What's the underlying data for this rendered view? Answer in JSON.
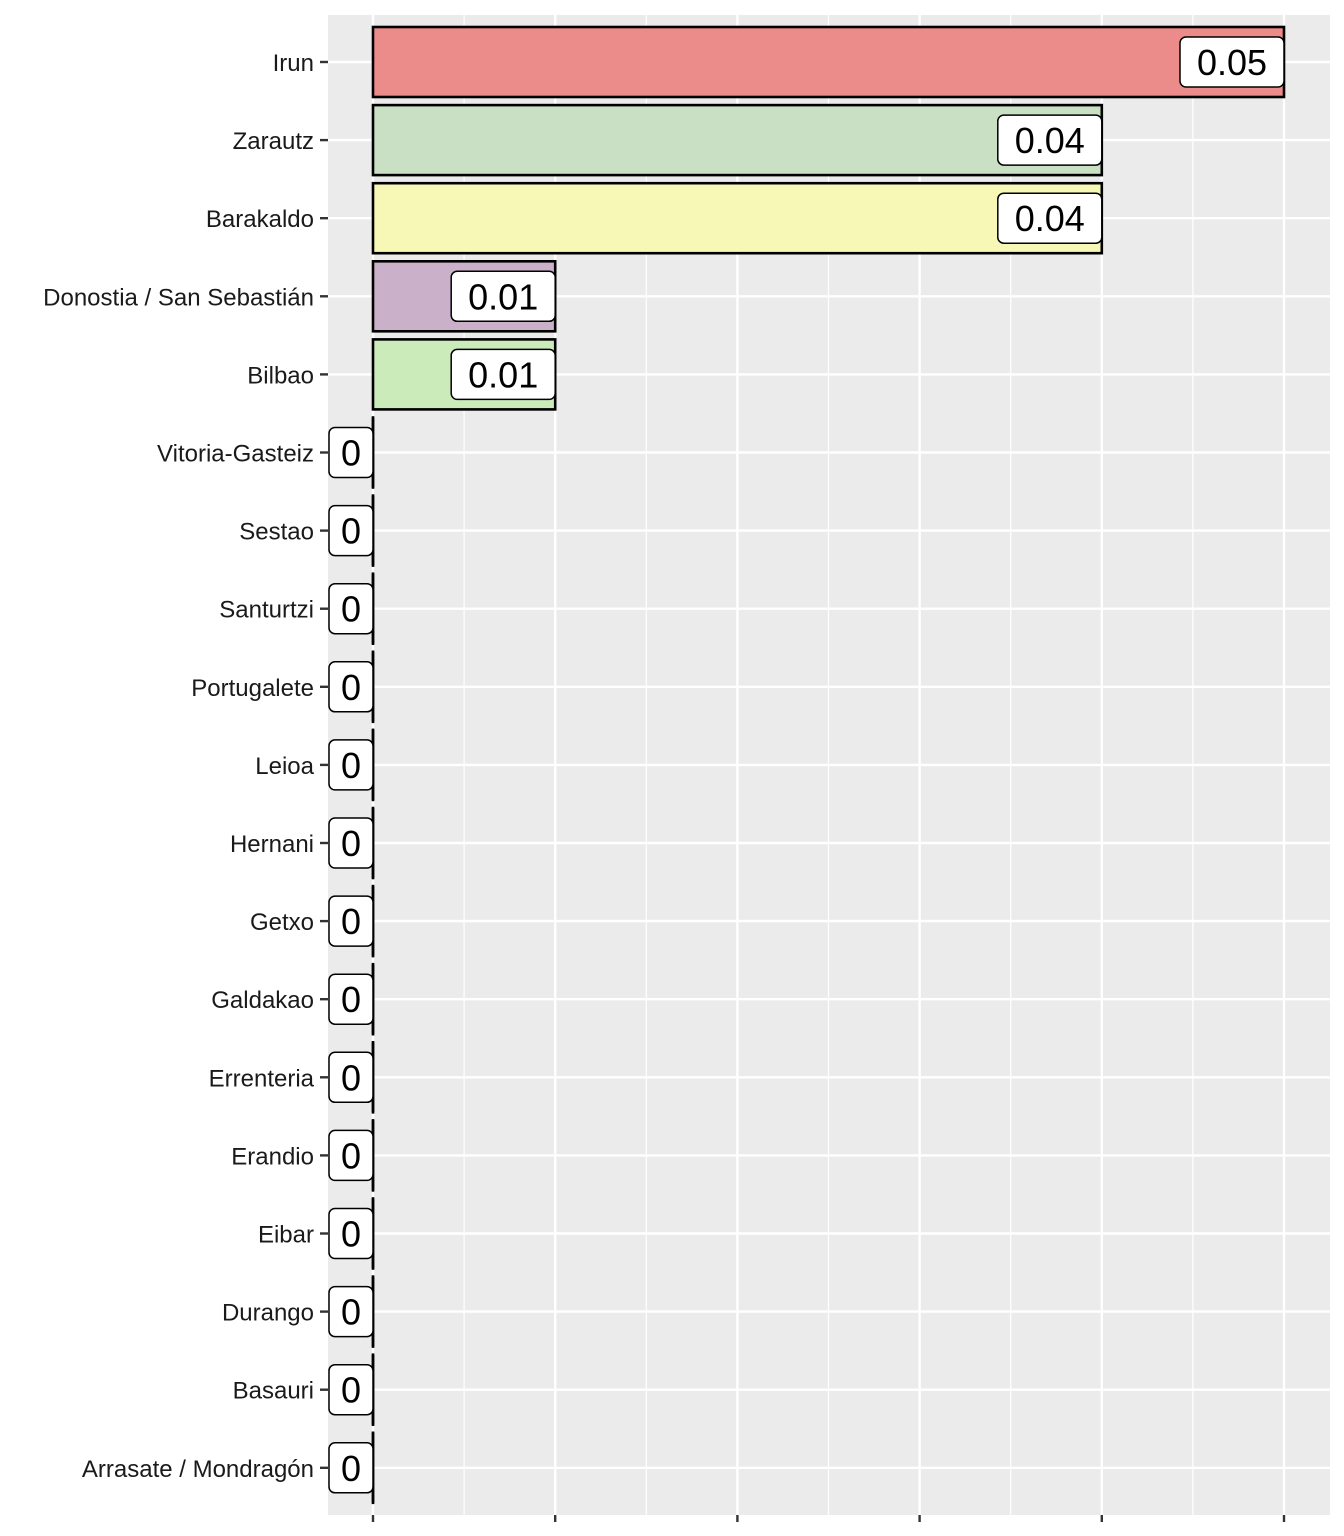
{
  "chart_data": {
    "type": "bar",
    "orientation": "horizontal",
    "title": "",
    "xlabel": "",
    "ylabel": "",
    "xlim": [
      0,
      0.05
    ],
    "x_ticks": [
      0,
      0.01,
      0.02,
      0.03,
      0.04,
      0.05
    ],
    "x_tick_labels_visible": false,
    "grid": true,
    "categories": [
      "Irun",
      "Zarautz",
      "Barakaldo",
      "Donostia / San Sebastián",
      "Bilbao",
      "Vitoria-Gasteiz",
      "Sestao",
      "Santurtzi",
      "Portugalete",
      "Leioa",
      "Hernani",
      "Getxo",
      "Galdakao",
      "Errenteria",
      "Erandio",
      "Eibar",
      "Durango",
      "Basauri",
      "Arrasate / Mondragón"
    ],
    "values": [
      0.05,
      0.04,
      0.04,
      0.01,
      0.01,
      0,
      0,
      0,
      0,
      0,
      0,
      0,
      0,
      0,
      0,
      0,
      0,
      0,
      0
    ],
    "labels": [
      "0.05",
      "0.04",
      "0.04",
      "0.01",
      "0.01",
      "0",
      "0",
      "0",
      "0",
      "0",
      "0",
      "0",
      "0",
      "0",
      "0",
      "0",
      "0",
      "0",
      "0"
    ],
    "colors": [
      "#EC8C8A",
      "#C9E0C5",
      "#F7F8B5",
      "#CAB0C8",
      "#CCEBBB",
      "#CCCCCC",
      "#CCCCCC",
      "#CCCCCC",
      "#CCCCCC",
      "#CCCCCC",
      "#CCCCCC",
      "#CCCCCC",
      "#CCCCCC",
      "#CCCCCC",
      "#CCCCCC",
      "#CCCCCC",
      "#CCCCCC",
      "#CCCCCC",
      "#CCCCCC"
    ],
    "panel_background": "#EBEBEB"
  }
}
